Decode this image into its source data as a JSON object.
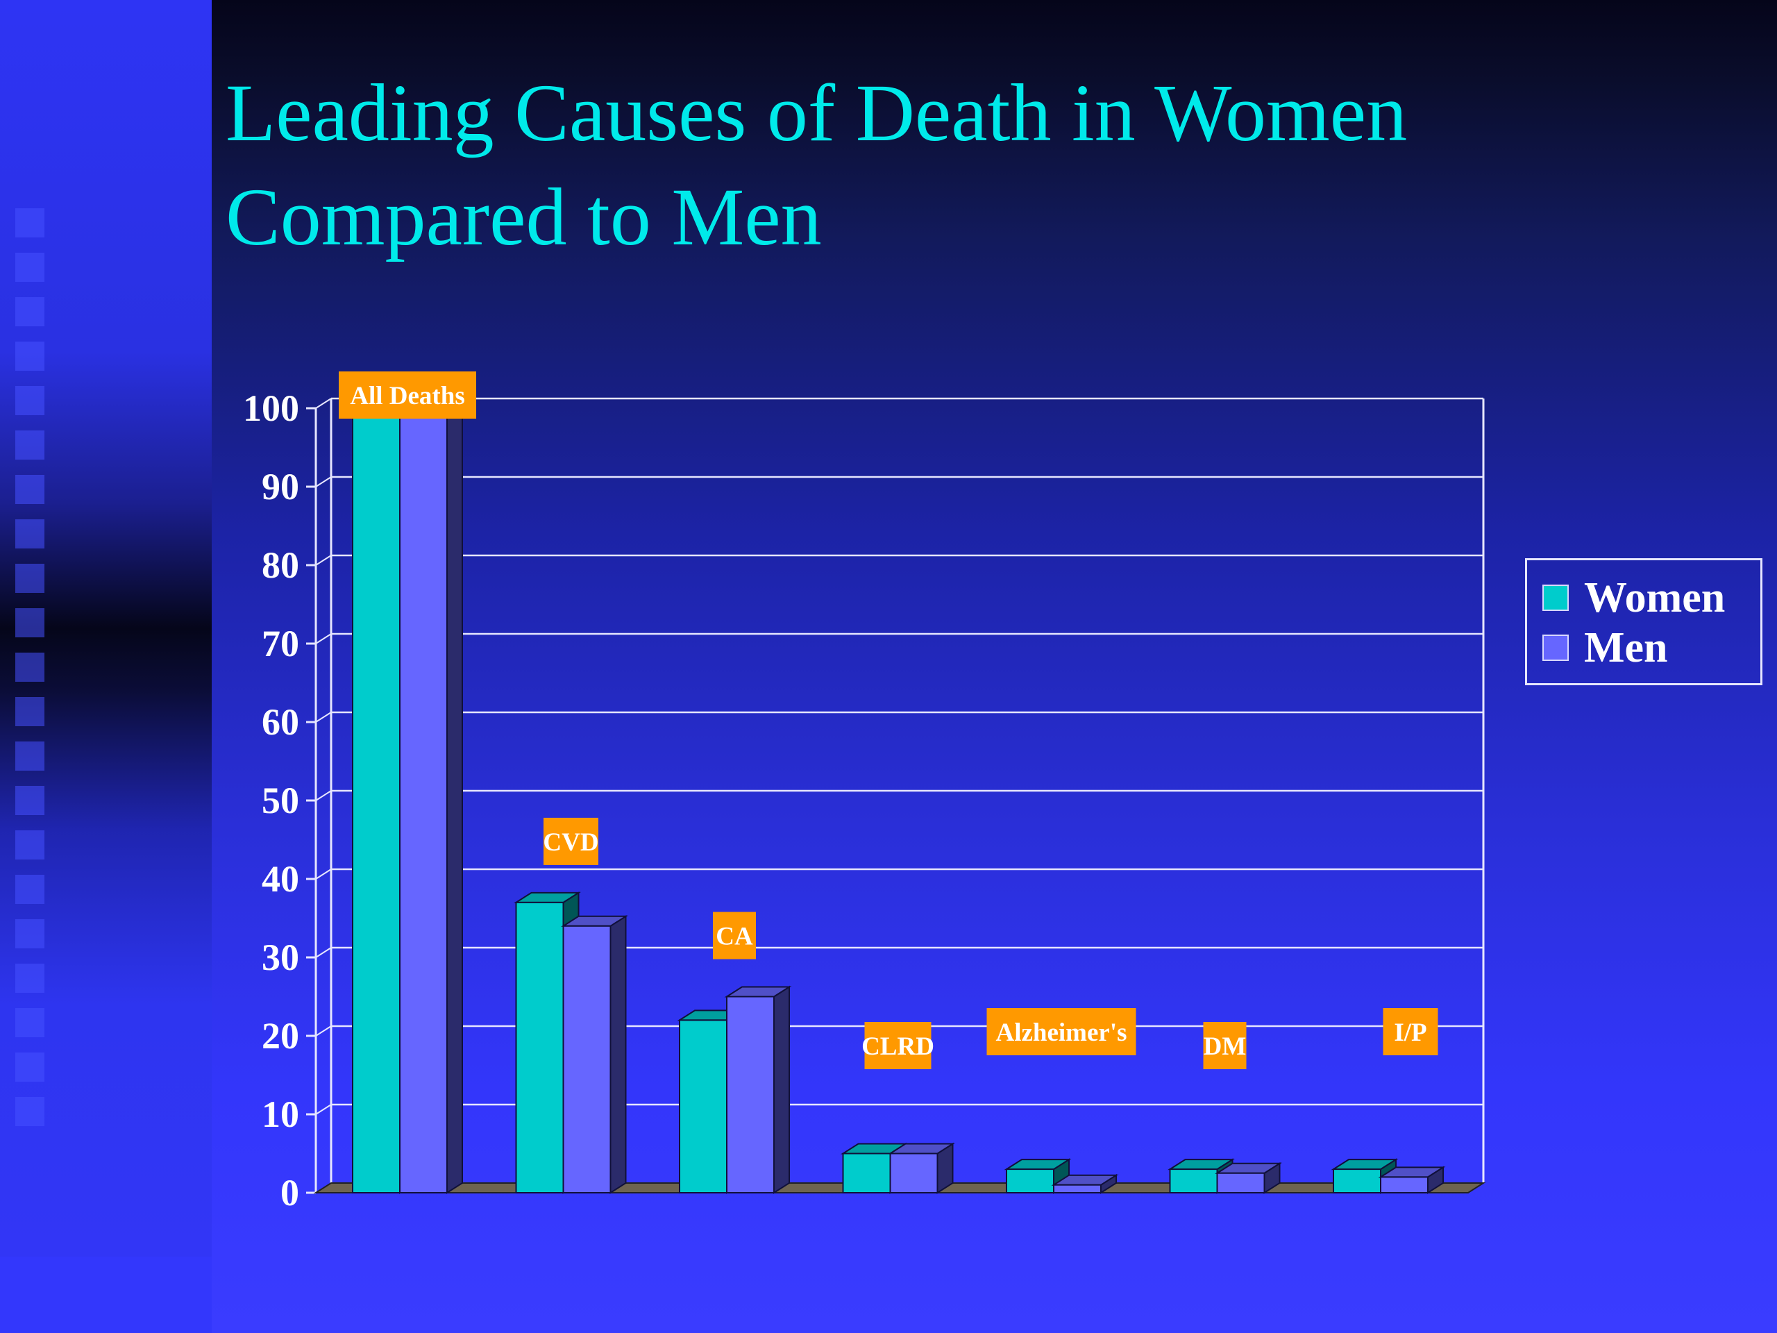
{
  "slide": {
    "title": "Leading Causes of Death in Women\nCompared to Men"
  },
  "colors": {
    "women": "#00cccc",
    "men": "#6666ff",
    "label_box": "#ff9900",
    "title": "#00eaea",
    "gridline": "#e6e6ff"
  },
  "chart_data": {
    "type": "bar",
    "categories": [
      "All Deaths",
      "CVD",
      "CA",
      "CLRD",
      "Alzheimer's",
      "DM",
      "I/P"
    ],
    "series": [
      {
        "name": "Women",
        "values": [
          100,
          37,
          22,
          5,
          3,
          3,
          3
        ]
      },
      {
        "name": "Men",
        "values": [
          100,
          34,
          25,
          5,
          1,
          2.5,
          2
        ]
      }
    ],
    "yticks": [
      "0",
      "10",
      "20",
      "30",
      "40",
      "50",
      "60",
      "70",
      "80",
      "90",
      "100"
    ],
    "ylim": [
      0,
      100
    ],
    "grid": true,
    "legend_position": "right",
    "title": "",
    "xlabel": "",
    "ylabel": ""
  },
  "legend": {
    "items": [
      {
        "label": "Women"
      },
      {
        "label": "Men"
      }
    ]
  }
}
